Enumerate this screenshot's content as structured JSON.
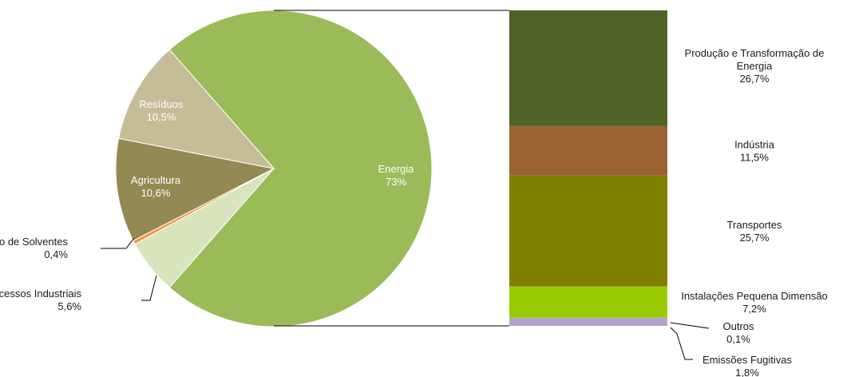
{
  "chart_data": [
    {
      "type": "pie",
      "slices": [
        {
          "label": "Energia",
          "value_label": "73%",
          "value": 73.0,
          "color": "#9bbb59",
          "label_inside": true
        },
        {
          "label": "Processos Industriais",
          "value_label": "5,6%",
          "value": 5.6,
          "color": "#d7e4bd",
          "label_inside": false
        },
        {
          "label": "Uso de Solventes",
          "value_label": "0,4%",
          "value": 0.4,
          "color": "#f79646",
          "label_inside": false
        },
        {
          "label": "Agricultura",
          "value_label": "10,6%",
          "value": 10.6,
          "color": "#938953",
          "label_inside": true
        },
        {
          "label": "Resíduos",
          "value_label": "10,5%",
          "value": 10.5,
          "color": "#c4bd97",
          "label_inside": true
        }
      ]
    },
    {
      "type": "bar",
      "stacked": true,
      "breakdown_of": "Energia",
      "segments": [
        {
          "label": "Produção e Transformação de Energia",
          "value_label": "26,7%",
          "value": 26.7,
          "color": "#4f6228"
        },
        {
          "label": "Indústria",
          "value_label": "11,5%",
          "value": 11.5,
          "color": "#9b6334"
        },
        {
          "label": "Transportes",
          "value_label": "25,7%",
          "value": 25.7,
          "color": "#7f7f00"
        },
        {
          "label": "Instalações Pequena Dimensão",
          "value_label": "7,2%",
          "value": 7.2,
          "color": "#99cc00"
        },
        {
          "label": "Outros",
          "value_label": "0,1%",
          "value": 0.1,
          "color": "#b3a2c7"
        },
        {
          "label": "Emissões Fugitivas",
          "value_label": "1,8%",
          "value": 1.8,
          "color": "#b3a2c7"
        }
      ]
    }
  ]
}
